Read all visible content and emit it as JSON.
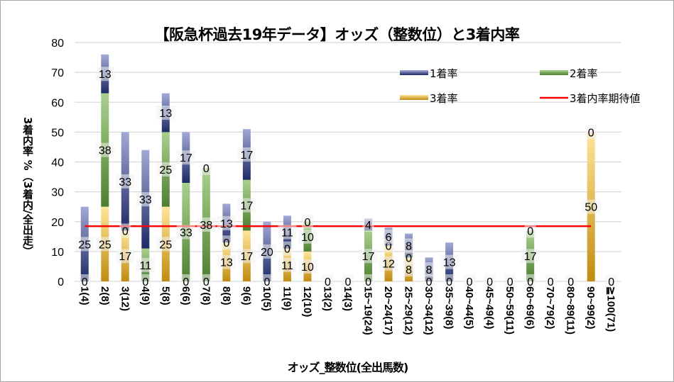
{
  "chart_data": {
    "type": "bar",
    "stacked": true,
    "title": "【阪急杯過去19年データ】オッズ（整数位）と3着内率",
    "xlabel": "オッズ_整数位(全出馬数)",
    "ylabel": "3着内率 %（3着内/全出走）",
    "ylim": [
      0,
      80
    ],
    "yticks": [
      "0",
      "10",
      "20",
      "30",
      "40",
      "50",
      "60",
      "70",
      "80"
    ],
    "grid": true,
    "legend_position": "top-right",
    "categories": [
      "1(4)",
      "2(8)",
      "3(12)",
      "4(9)",
      "5(8)",
      "6(6)",
      "7(8)",
      "8(8)",
      "9(6)",
      "10(5)",
      "11(9)",
      "12(10)",
      "13(2)",
      "14(3)",
      "15~19(24)",
      "20~24(17)",
      "25~29(12)",
      "30~34(12)",
      "35~39(8)",
      "40~44(5)",
      "45~49(4)",
      "50~59(11)",
      "60~69(6)",
      "70~79(2)",
      "80~89(11)",
      "90~99(2)",
      "≧100(71)"
    ],
    "series": [
      {
        "name": "3着率",
        "color": "#c9951a",
        "values": [
          0,
          25,
          17,
          0,
          25,
          0,
          0,
          13,
          17,
          0,
          11,
          10,
          0,
          0,
          0,
          12,
          8,
          0,
          0,
          0,
          0,
          0,
          0,
          0,
          0,
          50,
          0
        ],
        "labels": [
          "0",
          "25",
          "17",
          "0",
          "25",
          "0",
          "0",
          "13",
          "17",
          "0",
          "11",
          "10",
          "0",
          "0",
          "0",
          "12",
          "8",
          "0",
          "0",
          "0",
          "0",
          "0",
          "0",
          "0",
          "0",
          "50",
          "0"
        ]
      },
      {
        "name": "2着率",
        "color": "#5e8f3c",
        "values": [
          0,
          38,
          0,
          11,
          25,
          33,
          38,
          0,
          17,
          0,
          0,
          10,
          0,
          0,
          17,
          0,
          0,
          0,
          0,
          0,
          0,
          0,
          17,
          0,
          0,
          0,
          0
        ],
        "labels": [
          null,
          "38",
          "0",
          "11",
          "25",
          "33",
          "38",
          "0",
          "17",
          null,
          "0",
          "10",
          null,
          null,
          "17",
          "0",
          "0",
          null,
          null,
          null,
          null,
          null,
          "17",
          null,
          null,
          "0",
          null
        ]
      },
      {
        "name": "1着率",
        "color": "#3b4a8c",
        "values": [
          25,
          13,
          33,
          33,
          13,
          17,
          0,
          13,
          17,
          20,
          11,
          0,
          0,
          0,
          4,
          6,
          8,
          8,
          13,
          0,
          0,
          0,
          0,
          0,
          0,
          0,
          0
        ],
        "labels": [
          "25",
          "13",
          "33",
          "33",
          "13",
          "17",
          "0",
          "13",
          "17",
          "20",
          "11",
          "0",
          null,
          null,
          "4",
          "6",
          "8",
          "8",
          "13",
          null,
          null,
          null,
          "0",
          null,
          null,
          null,
          null
        ]
      }
    ],
    "reference_line": {
      "name": "3着内率期待値",
      "value": 18.5,
      "color": "#ff0000"
    },
    "legend": [
      "1着率",
      "2着率",
      "3着率",
      "3着内率期待値"
    ]
  }
}
